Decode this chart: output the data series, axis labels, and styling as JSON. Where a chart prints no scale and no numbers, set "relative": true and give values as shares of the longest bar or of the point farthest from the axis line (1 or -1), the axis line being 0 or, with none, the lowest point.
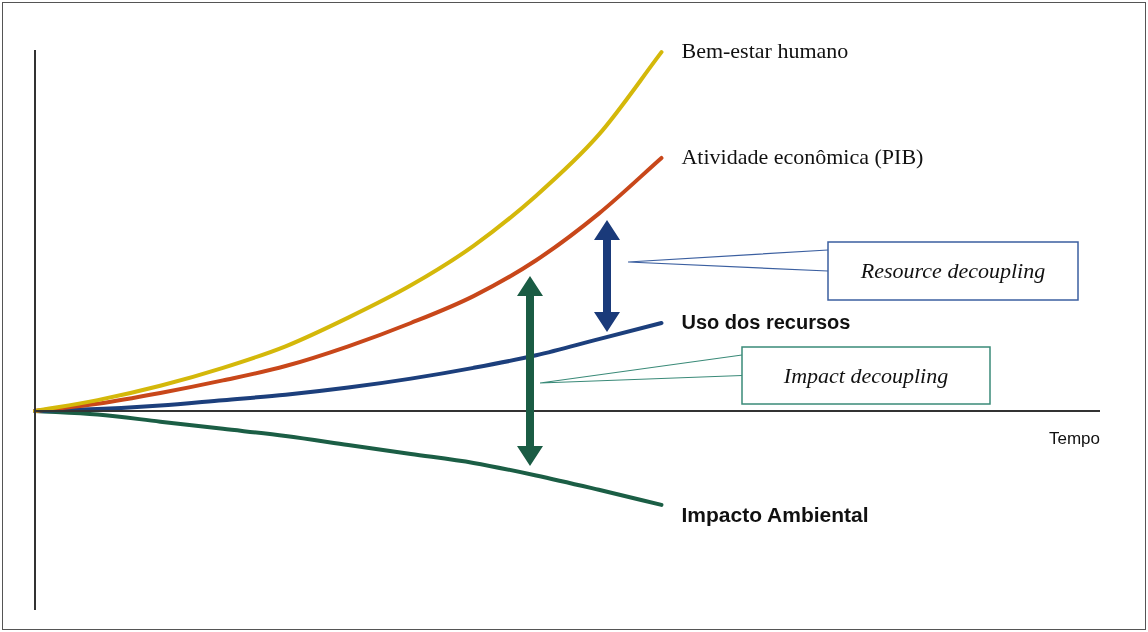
{
  "chart_data": {
    "type": "line",
    "relative": true,
    "xlabel": "Tempo",
    "categories": [
      null,
      null,
      null,
      null,
      null,
      null,
      null,
      null,
      null,
      null,
      null,
      null,
      null,
      null,
      null,
      null,
      null,
      null
    ],
    "series": [
      {
        "name": "Bem-estar humano",
        "color": "#d4b80a",
        "values": [
          0,
          0.03,
          0.07,
          0.12,
          0.18,
          0.26,
          0.35,
          0.46,
          0.6,
          0.77,
          1,
          null,
          null,
          null,
          null,
          null,
          null,
          null
        ]
      },
      {
        "name": "Atividade econômica (PIB)",
        "color": "#c8471a",
        "values": [
          0,
          0.02,
          0.05,
          0.085,
          0.125,
          0.18,
          0.245,
          0.32,
          0.42,
          0.55,
          0.705,
          null,
          null,
          null,
          null,
          null,
          null,
          null
        ]
      },
      {
        "name": "Uso dos recursos",
        "color": "#1c3f7c",
        "values": [
          0,
          0.005,
          0.015,
          0.03,
          0.045,
          0.065,
          0.09,
          0.12,
          0.155,
          0.2,
          0.245,
          null,
          null,
          null,
          null,
          null,
          null,
          null
        ]
      },
      {
        "name": "Impacto Ambiental",
        "color": "#1b5e45",
        "values": [
          0,
          -0.01,
          -0.03,
          -0.05,
          -0.07,
          -0.095,
          -0.12,
          -0.145,
          -0.18,
          -0.22,
          -0.262,
          null,
          null,
          null,
          null,
          null,
          null,
          null
        ]
      }
    ],
    "annotations": [
      "Resource decoupling",
      "Impact decoupling"
    ],
    "legend": false,
    "marker": "none",
    "line_style": "solid"
  }
}
